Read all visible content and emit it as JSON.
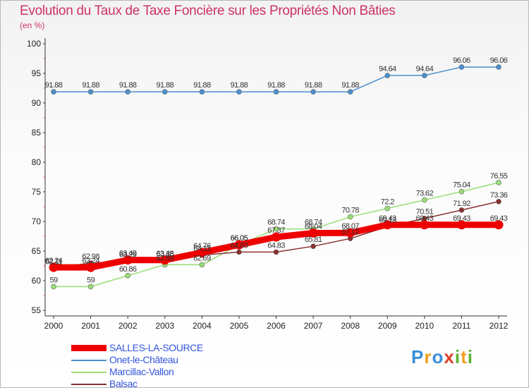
{
  "title": "Evolution du Taux de Taxe Foncière sur les Propriétés Non Bâties",
  "unit_label": "(en %)",
  "logo_text": "Proxiti",
  "colors": {
    "title": "#cc3366",
    "legend_text": "#3355dd",
    "axis_text": "#222222"
  },
  "chart_data": {
    "type": "line",
    "x": [
      "2000",
      "2001",
      "2002",
      "2003",
      "2004",
      "2005",
      "2006",
      "2007",
      "2008",
      "2009",
      "2010",
      "2011",
      "2012"
    ],
    "ylim": [
      55,
      100
    ],
    "yticks": [
      55,
      60,
      65,
      70,
      75,
      80,
      85,
      90,
      95,
      100
    ],
    "grid": false,
    "legend_position": "bottom-left",
    "series": [
      {
        "name": "SALLES-LA-SOURCE",
        "color": "#ee0000",
        "values": [
          62.24,
          62.24,
          63.49,
          63.48,
          64.76,
          66.05,
          67.37,
          68.04,
          68.07,
          69.43,
          69.43,
          69.43,
          69.43
        ],
        "labels": [
          "62.24",
          "62.24",
          "63.49",
          "63.48",
          "64.76",
          "66.05",
          "67.37",
          "68.04",
          "68.07",
          "69.43",
          "69.43",
          "69.43",
          "69.43"
        ]
      },
      {
        "name": "Onet-le-Château",
        "color": "#4a8fd0",
        "values": [
          91.88,
          91.88,
          91.88,
          91.88,
          91.88,
          91.88,
          91.88,
          91.88,
          91.88,
          94.64,
          94.64,
          96.06,
          96.06
        ],
        "labels": [
          "91.88",
          "91.88",
          "91.88",
          "91.88",
          "91.88",
          "91.88",
          "91.88",
          "91.88",
          "91.88",
          "94.64",
          "94.64",
          "96.06",
          "96.06"
        ]
      },
      {
        "name": "Marcillac-Vallon",
        "color": "#99dd77",
        "values": [
          59,
          59,
          60.86,
          62.69,
          62.69,
          66.05,
          68.74,
          68.74,
          70.78,
          72.2,
          73.62,
          75.04,
          76.55
        ],
        "labels": [
          "59",
          "59",
          "60.86",
          "62.69",
          "62.69",
          "66.05",
          "68.74",
          "68.74",
          "70.78",
          "72.2",
          "73.62",
          "75.04",
          "76.55"
        ]
      },
      {
        "name": "Balsac",
        "color": "#8a3030",
        "values": [
          62.11,
          62.98,
          63.29,
          63.38,
          64.31,
          64.83,
          64.83,
          65.81,
          67.12,
          69.13,
          70.51,
          71.92,
          73.36
        ],
        "labels": [
          "62.11",
          "62.98",
          "63.29",
          "63.38",
          "64.31",
          "64.83",
          "64.83",
          "65.81",
          "67.12",
          "69.13",
          "70.51",
          "71.92",
          "73.36"
        ]
      }
    ]
  }
}
